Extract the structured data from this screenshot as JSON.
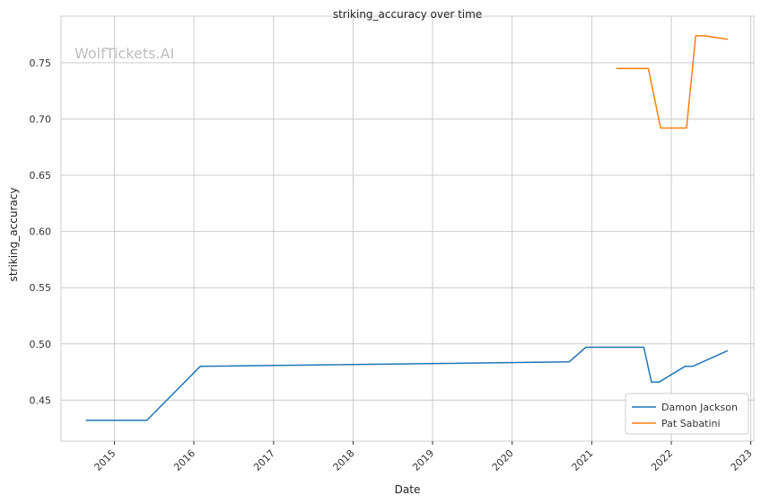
{
  "watermark": "WolfTickets.AI",
  "chart_data": {
    "type": "line",
    "title": "striking_accuracy over time",
    "xlabel": "Date",
    "ylabel": "striking_accuracy",
    "x_type": "date",
    "xlim": [
      "2014-05-01",
      "2023-01-15"
    ],
    "ylim": [
      0.4135,
      0.7915
    ],
    "x_ticks": [
      "2015",
      "2016",
      "2017",
      "2018",
      "2019",
      "2020",
      "2021",
      "2022",
      "2023"
    ],
    "y_ticks": [
      "0.45",
      "0.50",
      "0.55",
      "0.60",
      "0.65",
      "0.70",
      "0.75"
    ],
    "grid": true,
    "legend_position": "bottom-right",
    "series": [
      {
        "name": "Damon Jackson",
        "color": "#1f77b4",
        "points": [
          {
            "x": "2014-08-23",
            "y": 0.432
          },
          {
            "x": "2015-05-30",
            "y": 0.432
          },
          {
            "x": "2016-01-30",
            "y": 0.48
          },
          {
            "x": "2020-09-19",
            "y": 0.484
          },
          {
            "x": "2020-12-05",
            "y": 0.497
          },
          {
            "x": "2021-08-28",
            "y": 0.497
          },
          {
            "x": "2021-10-02",
            "y": 0.466
          },
          {
            "x": "2021-11-06",
            "y": 0.466
          },
          {
            "x": "2022-03-05",
            "y": 0.48
          },
          {
            "x": "2022-04-09",
            "y": 0.48
          },
          {
            "x": "2022-09-17",
            "y": 0.494
          }
        ]
      },
      {
        "name": "Pat Sabatini",
        "color": "#ff7f0e",
        "points": [
          {
            "x": "2021-04-24",
            "y": 0.745
          },
          {
            "x": "2021-09-18",
            "y": 0.745
          },
          {
            "x": "2021-11-13",
            "y": 0.692
          },
          {
            "x": "2022-03-12",
            "y": 0.692
          },
          {
            "x": "2022-04-23",
            "y": 0.774
          },
          {
            "x": "2022-06-04",
            "y": 0.774
          },
          {
            "x": "2022-09-17",
            "y": 0.771
          }
        ]
      }
    ]
  }
}
